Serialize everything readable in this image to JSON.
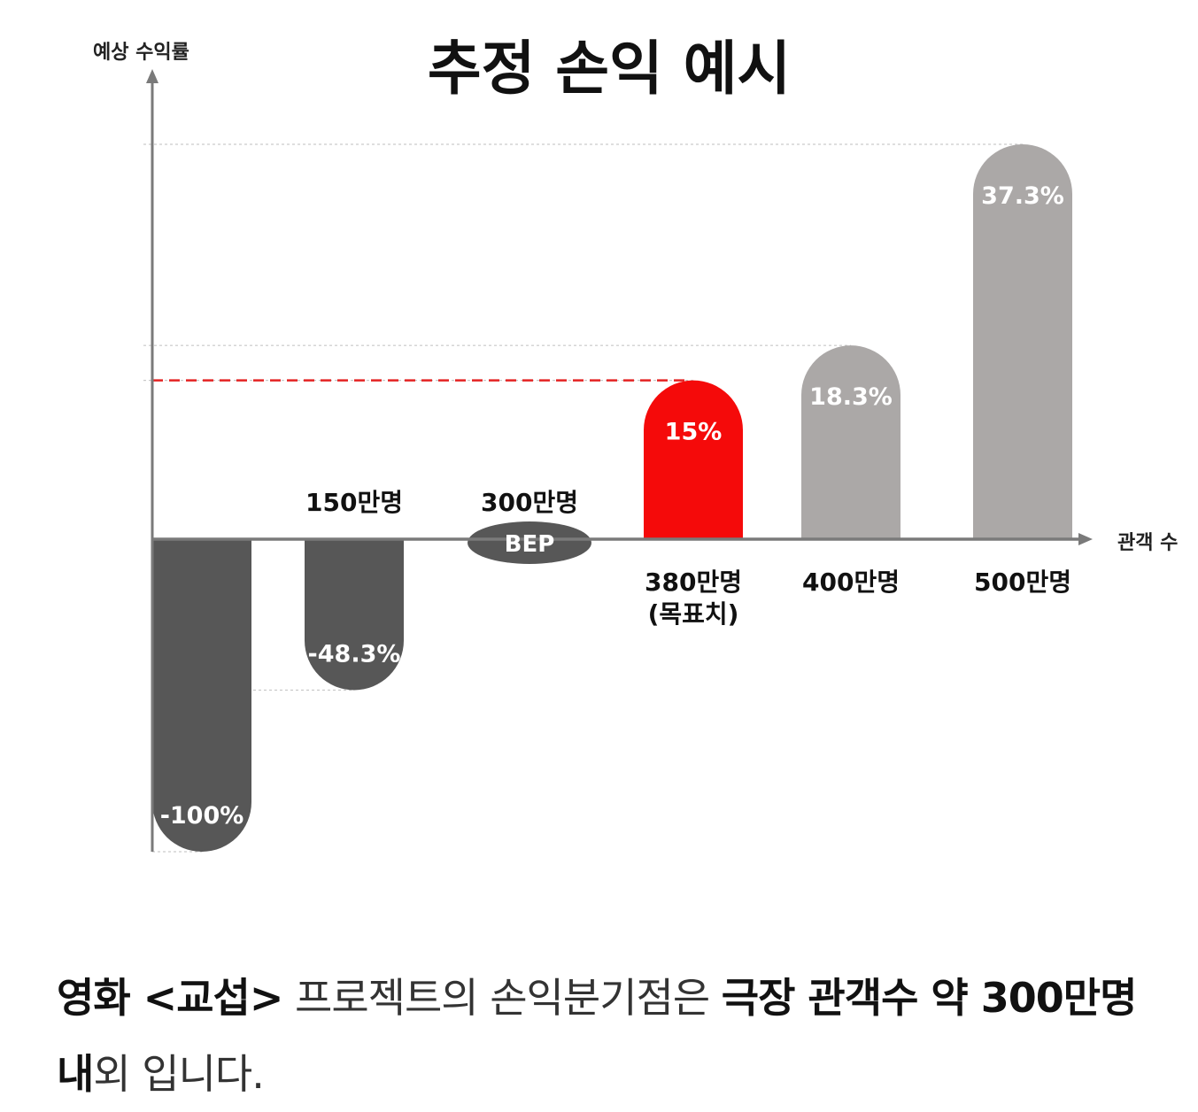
{
  "chart_data": {
    "type": "bar",
    "title": "추정 손익 예시",
    "ylabel": "예상 수익률",
    "xlabel": "관객 수",
    "categories": [
      "",
      "150만명",
      "300만명",
      "380만명 (목표치)",
      "400만명",
      "500만명"
    ],
    "category_lines": [
      [
        ""
      ],
      [
        "150만명"
      ],
      [
        "300만명"
      ],
      [
        "380만명",
        "(목표치)"
      ],
      [
        "400만명"
      ],
      [
        "500만명"
      ]
    ],
    "values": [
      -100,
      -48.3,
      0,
      15,
      18.3,
      37.3
    ],
    "value_labels": [
      "-100%",
      "-48.3%",
      "BEP",
      "15%",
      "18.3%",
      "37.3%"
    ],
    "highlight_index": 3,
    "target_line_value": 15,
    "ylim": [
      -100,
      37.3
    ],
    "grid": false,
    "legend": "none"
  },
  "colors": {
    "negative": "#575757",
    "positive": "#aba8a7",
    "highlight": "#f50a0a",
    "axis": "#7a7a7a",
    "bep": "#575757",
    "label_text": "#ffffff",
    "target_line": "#e42222"
  },
  "caption": {
    "p1": "영화 <교섭>",
    "p2": " 프로젝트의 손익분기점은 ",
    "p3": "극장 관객수 약 300만명 내",
    "p4": "외 입니다."
  }
}
